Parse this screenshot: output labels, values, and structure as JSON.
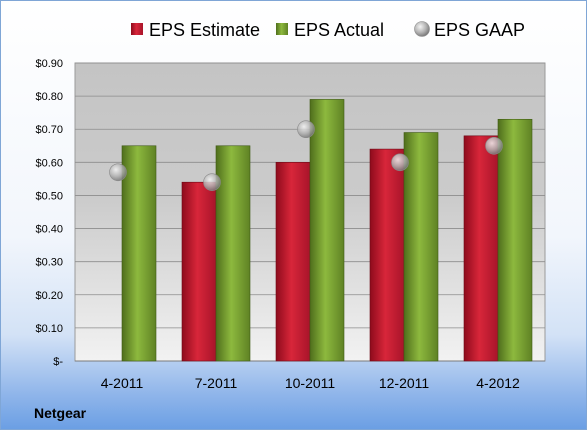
{
  "company": "Netgear",
  "legend": [
    {
      "label": "EPS Estimate",
      "color": "#c8102e",
      "marker": "square"
    },
    {
      "label": "EPS Actual",
      "color": "#7aa32e",
      "marker": "square"
    },
    {
      "label": "EPS GAAP",
      "color": "#9a9a9a",
      "marker": "circle"
    }
  ],
  "chart_data": {
    "type": "bar",
    "title": "",
    "xlabel": "",
    "ylabel": "",
    "categories": [
      "4-2011",
      "7-2011",
      "10-2011",
      "12-2011",
      "4-2012"
    ],
    "ylim": [
      0,
      0.9
    ],
    "yticks": [
      0,
      0.1,
      0.2,
      0.3,
      0.4,
      0.5,
      0.6,
      0.7,
      0.8,
      0.9
    ],
    "ytick_labels": [
      "$-",
      "$0.10",
      "$0.20",
      "$0.30",
      "$0.40",
      "$0.50",
      "$0.60",
      "$0.70",
      "$0.80",
      "$0.90"
    ],
    "series": [
      {
        "name": "EPS Estimate",
        "type": "bar",
        "color": "#c8102e",
        "values": [
          null,
          0.54,
          0.6,
          0.64,
          0.68
        ]
      },
      {
        "name": "EPS Actual",
        "type": "bar",
        "color": "#7aa32e",
        "values": [
          0.65,
          0.65,
          0.79,
          0.69,
          0.73
        ]
      },
      {
        "name": "EPS GAAP",
        "type": "scatter",
        "color": "#9a9a9a",
        "values": [
          0.57,
          0.54,
          0.7,
          0.6,
          0.65
        ]
      }
    ],
    "grid": true,
    "legend_position": "top"
  }
}
